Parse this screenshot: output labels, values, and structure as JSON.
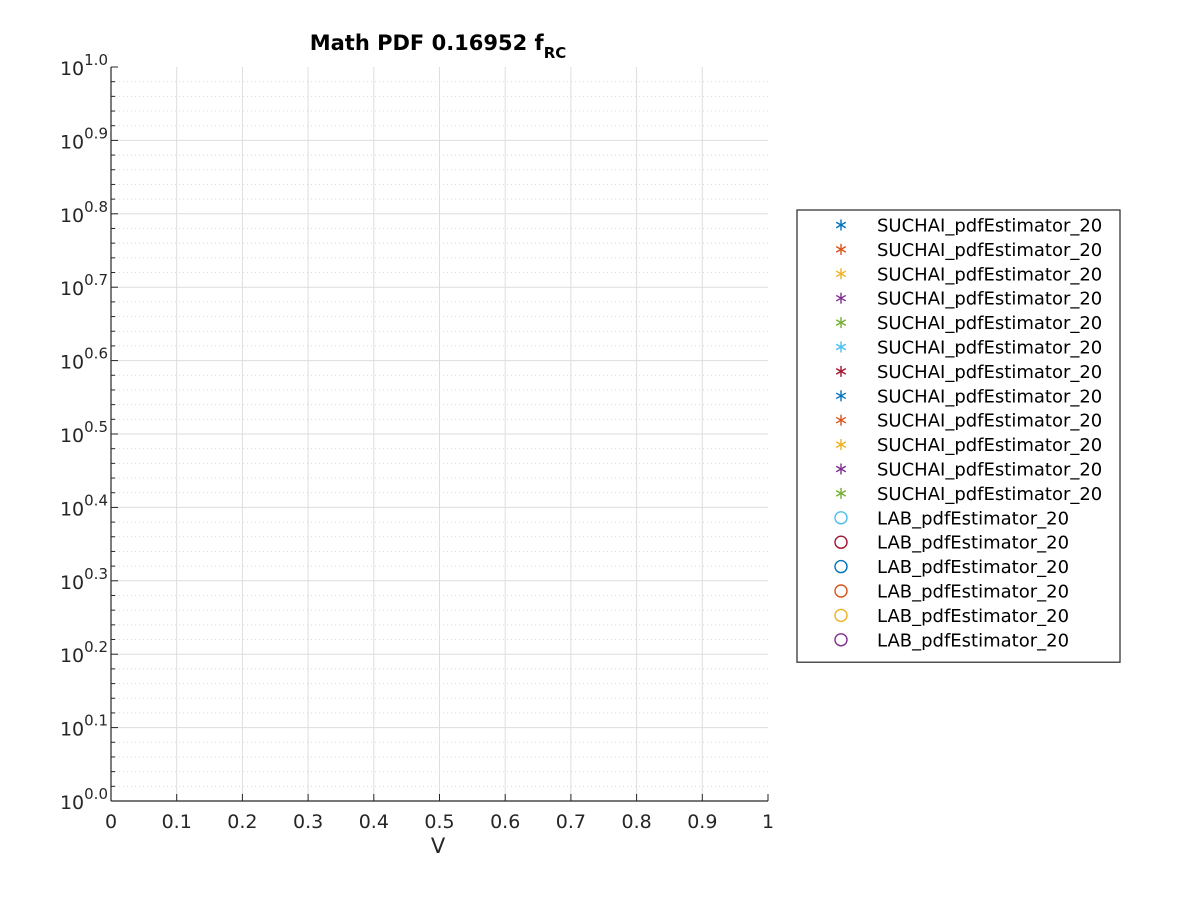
{
  "chart_data": {
    "type": "scatter",
    "title": "Math PDF 0.16952 f",
    "title_subscript": "RC",
    "xlabel": "V",
    "ylabel": "",
    "xlim": [
      0,
      1
    ],
    "ylim": [
      1,
      10
    ],
    "yscale": "log",
    "grid": true,
    "minor_grid": true,
    "legend_position": "outside-right",
    "x_ticks": [
      "0",
      "0.1",
      "0.2",
      "0.3",
      "0.4",
      "0.5",
      "0.6",
      "0.7",
      "0.8",
      "0.9",
      "1"
    ],
    "y_tick_base": "10",
    "y_tick_exponents": [
      "0.0",
      "0.1",
      "0.2",
      "0.3",
      "0.4",
      "0.5",
      "0.6",
      "0.7",
      "0.8",
      "0.9",
      "1.0"
    ],
    "series": [
      {
        "name": "SUCHAI_pdfEstimator_20",
        "marker": "asterisk",
        "color": "#0072BD",
        "points": []
      },
      {
        "name": "SUCHAI_pdfEstimator_20",
        "marker": "asterisk",
        "color": "#D95319",
        "points": []
      },
      {
        "name": "SUCHAI_pdfEstimator_20",
        "marker": "asterisk",
        "color": "#EDB120",
        "points": []
      },
      {
        "name": "SUCHAI_pdfEstimator_20",
        "marker": "asterisk",
        "color": "#7E2F8E",
        "points": []
      },
      {
        "name": "SUCHAI_pdfEstimator_20",
        "marker": "asterisk",
        "color": "#77AC30",
        "points": []
      },
      {
        "name": "SUCHAI_pdfEstimator_20",
        "marker": "asterisk",
        "color": "#4DBEEE",
        "points": []
      },
      {
        "name": "SUCHAI_pdfEstimator_20",
        "marker": "asterisk",
        "color": "#A2142F",
        "points": []
      },
      {
        "name": "SUCHAI_pdfEstimator_20",
        "marker": "asterisk",
        "color": "#0072BD",
        "points": []
      },
      {
        "name": "SUCHAI_pdfEstimator_20",
        "marker": "asterisk",
        "color": "#D95319",
        "points": []
      },
      {
        "name": "SUCHAI_pdfEstimator_20",
        "marker": "asterisk",
        "color": "#EDB120",
        "points": []
      },
      {
        "name": "SUCHAI_pdfEstimator_20",
        "marker": "asterisk",
        "color": "#7E2F8E",
        "points": []
      },
      {
        "name": "SUCHAI_pdfEstimator_20",
        "marker": "asterisk",
        "color": "#77AC30",
        "points": []
      },
      {
        "name": "LAB_pdfEstimator_20",
        "marker": "circle",
        "color": "#4DBEEE",
        "points": []
      },
      {
        "name": "LAB_pdfEstimator_20",
        "marker": "circle",
        "color": "#A2142F",
        "points": []
      },
      {
        "name": "LAB_pdfEstimator_20",
        "marker": "circle",
        "color": "#0072BD",
        "points": []
      },
      {
        "name": "LAB_pdfEstimator_20",
        "marker": "circle",
        "color": "#D95319",
        "points": []
      },
      {
        "name": "LAB_pdfEstimator_20",
        "marker": "circle",
        "color": "#EDB120",
        "points": []
      },
      {
        "name": "LAB_pdfEstimator_20",
        "marker": "circle",
        "color": "#7E2F8E",
        "points": []
      }
    ]
  }
}
